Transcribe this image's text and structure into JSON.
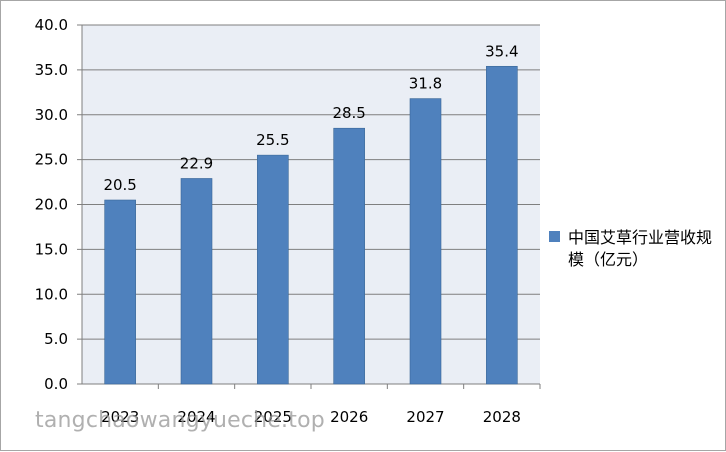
{
  "chart_data": {
    "type": "bar",
    "categories": [
      "2023",
      "2024",
      "2025",
      "2026",
      "2027",
      "2028"
    ],
    "series": [
      {
        "name": "中国艾草行业营收规模（亿元）",
        "values": [
          20.5,
          22.9,
          25.5,
          28.5,
          31.8,
          35.4
        ],
        "color": "#4f81bd"
      }
    ],
    "data_labels": [
      "20.5",
      "22.9",
      "25.5",
      "28.5",
      "31.8",
      "35.4"
    ],
    "ylim": [
      0,
      40
    ],
    "y_ticks": [
      "0.0",
      "5.0",
      "10.0",
      "15.0",
      "20.0",
      "25.0",
      "30.0",
      "35.0",
      "40.0"
    ],
    "grid": true,
    "legend_position": "right",
    "plot_background": "#eaeef5",
    "title": "",
    "xlabel": "",
    "ylabel": ""
  },
  "watermark": "tangchaowangyueche.top"
}
